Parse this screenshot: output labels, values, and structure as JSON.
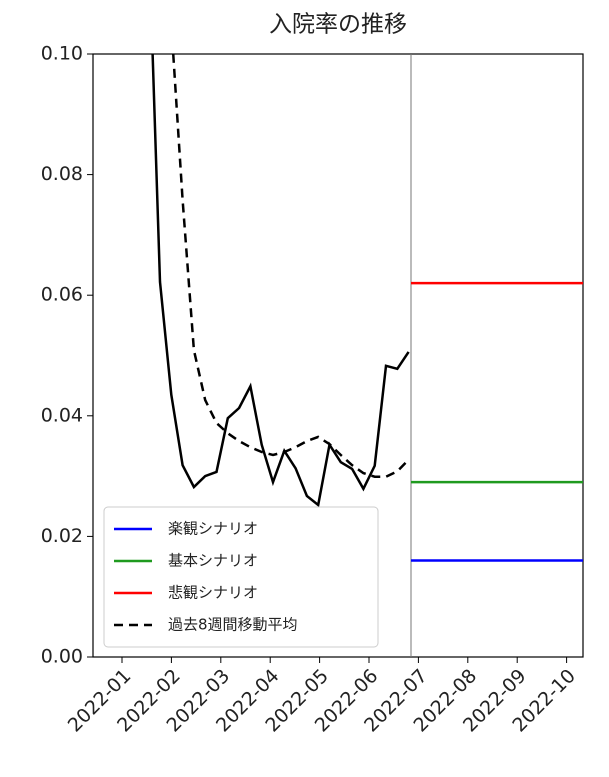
{
  "chart_data": {
    "type": "line",
    "title": "入院率の推移",
    "ylim": [
      0,
      0.1
    ],
    "yticks": [
      {
        "value": 0,
        "label": "0.00"
      },
      0.02,
      0.04,
      0.06,
      0.08,
      {
        "value": 0.1,
        "label": "0.10"
      }
    ],
    "xticks": [
      "2022-01",
      "2022-02",
      "2022-03",
      "2022-04",
      "2022-05",
      "2022-06",
      "2022-07",
      "2022-08",
      "2022-09",
      "2022-10"
    ],
    "grid": false,
    "legend": "lower left",
    "series": [
      {
        "color": "#000000",
        "values": [
          0.12,
          0.0622,
          0.0435,
          0.0318,
          0.0282,
          0.03,
          0.0307,
          0.0396,
          0.0413,
          0.0449,
          0.0352,
          0.029,
          0.0342,
          0.0313,
          0.0267,
          0.0252,
          0.0352,
          0.0323,
          0.0312,
          0.0279,
          0.0317,
          0.0483,
          0.0478,
          0.0506
        ]
      },
      {
        "name": "楽観シナリオ",
        "color": "#0000ff",
        "values": [
          0.016
        ],
        "scenario": true
      },
      {
        "name": "基本シナリオ",
        "color": "#1f9a1f",
        "values": [
          0.029
        ],
        "scenario": true
      },
      {
        "name": "悲観シナリオ",
        "color": "#ff0000",
        "values": [
          0.062
        ],
        "scenario": true
      },
      {
        "name": "過去8週間移動平均",
        "color": "#000000",
        "dash": true,
        "values": [
          null,
          null,
          0.105,
          0.0758,
          0.0509,
          0.0426,
          0.0388,
          0.0371,
          0.0358,
          0.0348,
          0.034,
          0.0335,
          0.034,
          0.0348,
          0.0358,
          0.0365,
          0.0353,
          0.0335,
          0.0318,
          0.0305,
          0.0299,
          0.0299,
          0.0308,
          0.0327
        ]
      }
    ]
  }
}
